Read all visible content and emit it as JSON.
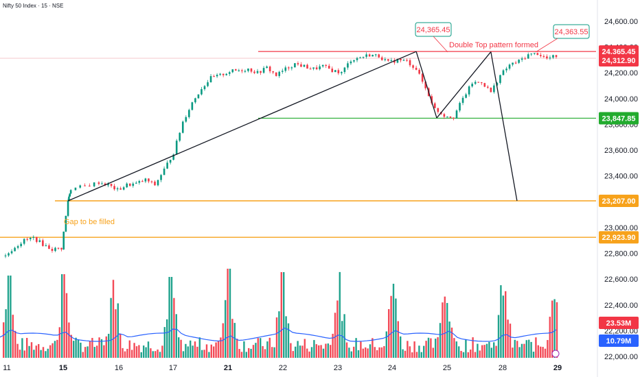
{
  "header": {
    "symbol_title": "Nifty 50 Index · 15 · NSE"
  },
  "colors": {
    "up": "#089981",
    "down": "#f23645",
    "red_line": "#f23645",
    "green_line": "#22ab2e",
    "orange": "#f7a21b",
    "volume_ma": "#2962ff",
    "trend": "#131722",
    "price_line": "#f4c7cb"
  },
  "chart_data": {
    "type": "candlestick",
    "title": "Nifty 50 Index · 15 · NSE",
    "y_axis": {
      "ticks": [
        "24,600.00",
        "24,400.00",
        "24,200.00",
        "24,000.00",
        "23,800.00",
        "23,600.00",
        "23,400.00",
        "23,200.00",
        "23,000.00",
        "22,800.00",
        "22,600.00",
        "22,400.00",
        "22,200.00",
        "22,000.00"
      ],
      "tick_values": [
        24600,
        24400,
        24200,
        24000,
        23800,
        23600,
        23400,
        23200,
        23000,
        22800,
        22600,
        22400,
        22200,
        22000
      ],
      "ylim": [
        21980,
        24700
      ]
    },
    "x_axis": {
      "labels": [
        "11",
        "15",
        "16",
        "17",
        "21",
        "22",
        "23",
        "24",
        "25",
        "28",
        "29"
      ],
      "bold": [
        "15",
        "21",
        "29"
      ]
    },
    "levels": [
      {
        "value": 24365.45,
        "label": "24,365.45",
        "color": "#f23645"
      },
      {
        "value": 24312.9,
        "label": "24,312.90",
        "color": "#f23645"
      },
      {
        "value": 23847.85,
        "label": "23,847.85",
        "color": "#22ab2e"
      },
      {
        "value": 23207.0,
        "label": "23,207.00",
        "color": "#f7a21b"
      },
      {
        "value": 22923.9,
        "label": "22,923.90",
        "color": "#f7a21b"
      }
    ],
    "volume_badges": [
      {
        "label": "23.53M",
        "color": "#f23645"
      },
      {
        "label": "10.79M",
        "color": "#2962ff"
      }
    ],
    "annotations": {
      "peak1_callout": "24,365.45",
      "peak2_callout": "24,363.55",
      "double_top_text": "Double Top pattern formed",
      "gap_text": "Gap to be filled"
    },
    "price_path": [
      [
        0.0,
        22780
      ],
      [
        1.0,
        22850
      ],
      [
        2.0,
        22900
      ],
      [
        3.0,
        22920
      ],
      [
        4.0,
        22870
      ],
      [
        5.0,
        22830
      ],
      [
        6.0,
        22840
      ],
      [
        6.7,
        23210
      ],
      [
        7.0,
        23300
      ],
      [
        8.5,
        23320
      ],
      [
        10.0,
        23350
      ],
      [
        11.0,
        23330
      ],
      [
        12.0,
        23290
      ],
      [
        13.0,
        23330
      ],
      [
        14.0,
        23340
      ],
      [
        15.0,
        23370
      ],
      [
        16.0,
        23330
      ],
      [
        17.0,
        23450
      ],
      [
        18.0,
        23580
      ],
      [
        19.0,
        23820
      ],
      [
        20.0,
        23970
      ],
      [
        21.0,
        24080
      ],
      [
        22.0,
        24160
      ],
      [
        23.0,
        24180
      ],
      [
        24.0,
        24210
      ],
      [
        25.0,
        24220
      ],
      [
        26.0,
        24230
      ],
      [
        27.0,
        24200
      ],
      [
        28.0,
        24240
      ],
      [
        29.0,
        24180
      ],
      [
        30.0,
        24230
      ],
      [
        31.0,
        24270
      ],
      [
        32.0,
        24250
      ],
      [
        33.0,
        24230
      ],
      [
        34.0,
        24250
      ],
      [
        35.0,
        24220
      ],
      [
        36.0,
        24200
      ],
      [
        37.0,
        24300
      ],
      [
        38.0,
        24320
      ],
      [
        39.0,
        24340
      ],
      [
        40.0,
        24330
      ],
      [
        41.0,
        24280
      ],
      [
        42.0,
        24300
      ],
      [
        43.0,
        24290
      ],
      [
        44.0,
        24230
      ],
      [
        45.0,
        24080
      ],
      [
        46.0,
        23920
      ],
      [
        47.0,
        23870
      ],
      [
        48.0,
        23860
      ],
      [
        49.0,
        24000
      ],
      [
        50.0,
        24120
      ],
      [
        51.0,
        24130
      ],
      [
        52.0,
        24050
      ],
      [
        53.0,
        24180
      ],
      [
        54.0,
        24260
      ],
      [
        55.0,
        24290
      ],
      [
        56.0,
        24340
      ],
      [
        57.0,
        24350
      ],
      [
        58.0,
        24310
      ],
      [
        59.0,
        24330
      ]
    ],
    "trend_lines": [
      {
        "from": [
          6.7,
          23207
        ],
        "to": [
          44.0,
          24365
        ]
      },
      {
        "from": [
          44.0,
          24365
        ],
        "to": [
          46.2,
          23850
        ]
      },
      {
        "from": [
          46.2,
          23850
        ],
        "to": [
          52.0,
          24363
        ]
      },
      {
        "from": [
          52.0,
          24363
        ],
        "to": [
          54.8,
          23207
        ]
      }
    ]
  }
}
